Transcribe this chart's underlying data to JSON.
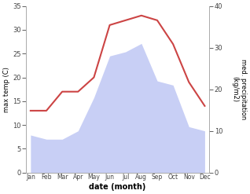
{
  "months": [
    "Jan",
    "Feb",
    "Mar",
    "Apr",
    "May",
    "Jun",
    "Jul",
    "Aug",
    "Sep",
    "Oct",
    "Nov",
    "Dec"
  ],
  "temperature": [
    13,
    13,
    17,
    17,
    20,
    31,
    32,
    33,
    32,
    27,
    19,
    14
  ],
  "precipitation": [
    9,
    8,
    8,
    10,
    18,
    28,
    29,
    31,
    22,
    21,
    11,
    10
  ],
  "temp_color": "#cc4444",
  "precip_fill_color": "#c8cff5",
  "ylim_left": [
    0,
    35
  ],
  "ylim_right": [
    0,
    40
  ],
  "yticks_left": [
    0,
    5,
    10,
    15,
    20,
    25,
    30,
    35
  ],
  "yticks_right": [
    0,
    10,
    20,
    30,
    40
  ],
  "xlabel": "date (month)",
  "ylabel_left": "max temp (C)",
  "ylabel_right": "med. precipitation\n(kg/m2)",
  "figsize": [
    3.18,
    2.47
  ],
  "dpi": 100
}
